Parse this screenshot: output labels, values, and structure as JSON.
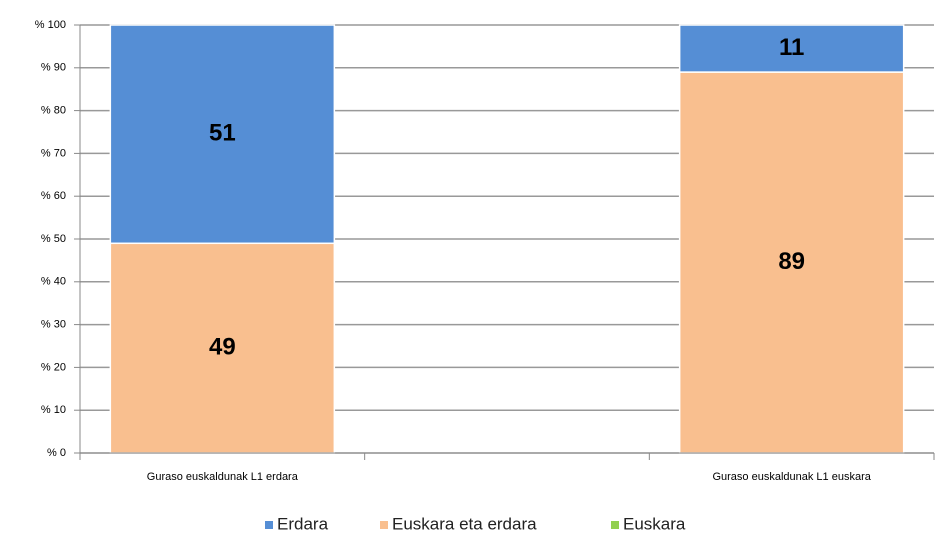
{
  "chart_data": {
    "type": "stacked_bar",
    "categories": [
      "Guraso euskaldunak L1 erdara",
      null,
      "Guraso euskaldunak L1 euskara"
    ],
    "series": [
      {
        "name": "Erdara",
        "color": "#558ed5",
        "values": [
          51,
          null,
          11
        ]
      },
      {
        "name": "Euskara eta erdara",
        "color": "#f9bf8f",
        "values": [
          49,
          null,
          89
        ]
      },
      {
        "name": "Euskara",
        "color": "#92d050",
        "values": [
          null,
          null,
          null
        ]
      }
    ],
    "ylim": [
      0,
      100
    ],
    "yticks": [
      {
        "value": 0,
        "label": "% 0"
      },
      {
        "value": 10,
        "label": "% 10"
      },
      {
        "value": 20,
        "label": "% 20"
      },
      {
        "value": 30,
        "label": "% 30"
      },
      {
        "value": 40,
        "label": "% 40"
      },
      {
        "value": 50,
        "label": "% 50"
      },
      {
        "value": 60,
        "label": "% 60"
      },
      {
        "value": 70,
        "label": "% 70"
      },
      {
        "value": 80,
        "label": "% 80"
      },
      {
        "value": 90,
        "label": "% 90"
      },
      {
        "value": 100,
        "label": "% 100"
      }
    ],
    "grid": true,
    "legend": "bottom"
  }
}
